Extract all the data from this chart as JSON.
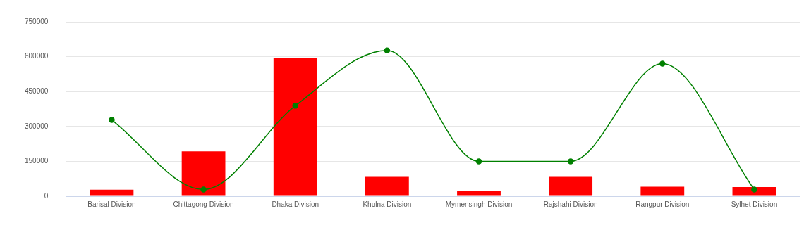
{
  "chart_data": {
    "type": "bar",
    "categories": [
      "Barisal Division",
      "Chittagong Division",
      "Dhaka Division",
      "Khulna Division",
      "Mymensingh Division",
      "Rajshahi Division",
      "Rangpur Division",
      "Sylhet Division"
    ],
    "series": [
      {
        "type": "bar",
        "color": "#ff0000",
        "values": [
          28000,
          193000,
          593000,
          83000,
          24000,
          83000,
          41000,
          39000
        ]
      },
      {
        "type": "line",
        "color": "#008000",
        "values": [
          328000,
          29000,
          389000,
          627000,
          150000,
          150000,
          570000,
          29000
        ]
      }
    ],
    "ylim": [
      0,
      750000
    ],
    "yticks": [
      0,
      150000,
      300000,
      450000,
      600000,
      750000
    ],
    "grid": "y",
    "marker": "circle",
    "line_style": "solid"
  }
}
